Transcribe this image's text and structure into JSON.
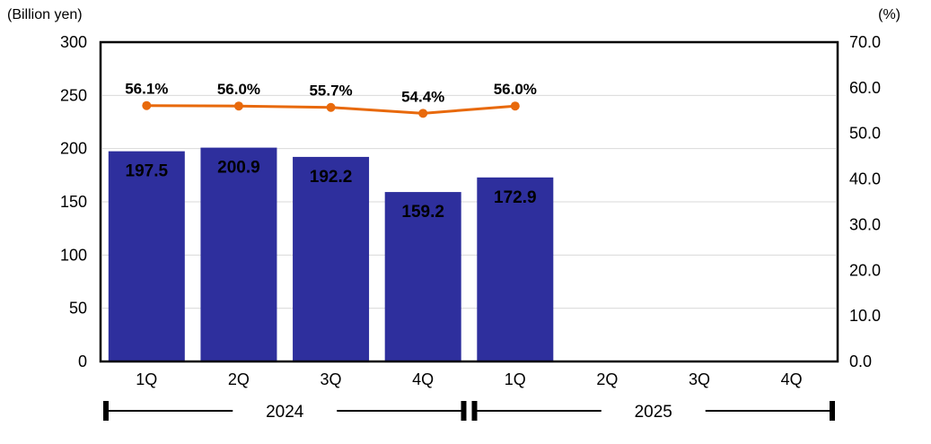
{
  "chart_data": {
    "type": "bar",
    "subtype": "bar-line-combo",
    "categories": [
      "1Q",
      "2Q",
      "3Q",
      "4Q",
      "1Q",
      "2Q",
      "3Q",
      "4Q"
    ],
    "year_groups": [
      {
        "label": "2024",
        "start_index": 0,
        "end_index": 3
      },
      {
        "label": "2025",
        "start_index": 4,
        "end_index": 7
      }
    ],
    "left_axis": {
      "label": "(Billion yen)",
      "min": 0,
      "max": 300,
      "tick_step": 50,
      "ticks": [
        "300",
        "250",
        "200",
        "150",
        "100",
        "50",
        "0"
      ]
    },
    "right_axis": {
      "label": "(%)",
      "min": 0,
      "max": 70,
      "tick_step": 10,
      "ticks": [
        "70.0",
        "60.0",
        "50.0",
        "40.0",
        "30.0",
        "20.0",
        "10.0",
        "0.0"
      ]
    },
    "series": [
      {
        "name": "bars-billion-yen",
        "type": "bar",
        "axis": "left",
        "values": [
          197.5,
          200.9,
          192.2,
          159.2,
          172.9
        ],
        "labels": [
          "197.5",
          "200.9",
          "192.2",
          "159.2",
          "172.9"
        ],
        "color": "#2E2F9D",
        "label_color": "#FFFFFF"
      },
      {
        "name": "line-percent",
        "type": "line",
        "axis": "right",
        "values": [
          56.1,
          56.0,
          55.7,
          54.4,
          56.0
        ],
        "labels": [
          "56.1%",
          "56.0%",
          "55.7%",
          "54.4%",
          "56.0%"
        ],
        "color": "#E8690B",
        "label_color": "#E8690B"
      }
    ],
    "grid": true,
    "gridline_color": "#D9D9D9",
    "border_color": "#000000",
    "legend": "none"
  }
}
